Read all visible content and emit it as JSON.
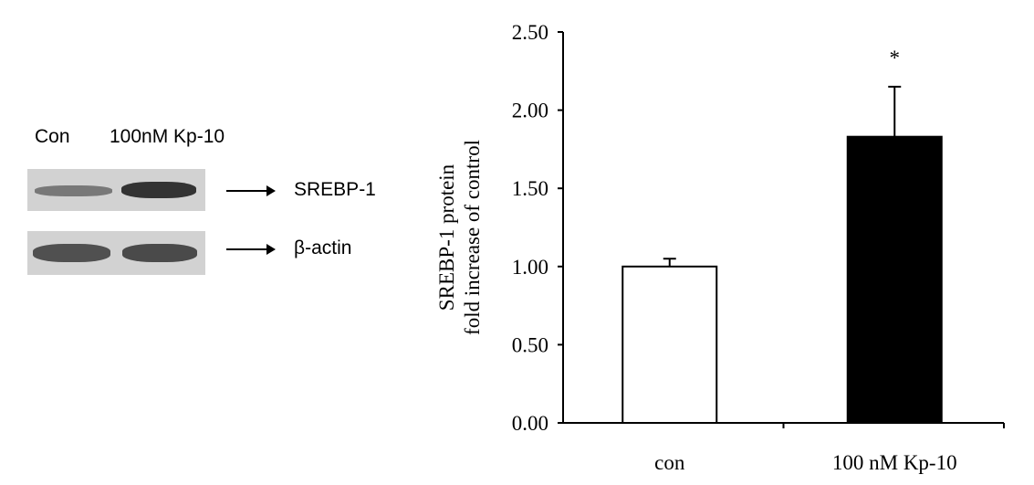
{
  "blot": {
    "lane_labels": [
      "Con",
      "100nM Kp-10"
    ],
    "proteins": [
      "SREBP-1",
      "β-actin"
    ]
  },
  "chart_data": {
    "type": "bar",
    "categories": [
      "con",
      "100 nM Kp-10"
    ],
    "values": [
      1.0,
      1.83
    ],
    "errors": [
      0.05,
      0.32
    ],
    "bar_colors": [
      "#ffffff",
      "#000000"
    ],
    "significance": [
      "",
      "*"
    ],
    "ylabel_lines": [
      "SREBP-1  protein",
      "fold increase of control"
    ],
    "ylim": [
      0,
      2.5
    ],
    "yticks": [
      "0.00",
      "0.50",
      "1.00",
      "1.50",
      "2.00",
      "2.50"
    ],
    "grid": false
  }
}
